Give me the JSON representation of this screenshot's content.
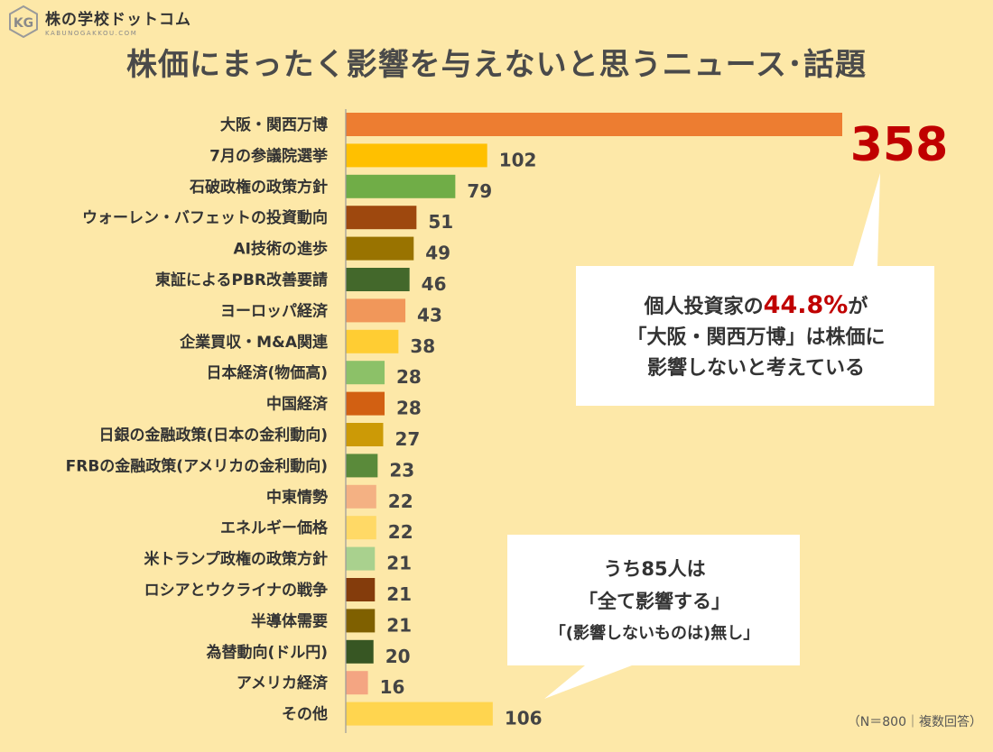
{
  "logo": {
    "name": "株の学校ドットコム",
    "sub": "KABUNOGAKKOU.COM",
    "mark": "KG"
  },
  "title": "株価にまったく影響を与えないと思うニュース･話題",
  "chart_data": {
    "type": "bar",
    "orientation": "horizontal",
    "categories": [
      "大阪・関西万博",
      "7月の参議院選挙",
      "石破政権の政策方針",
      "ウォーレン・バフェットの投資動向",
      "AI技術の進歩",
      "東証によるPBR改善要請",
      "ヨーロッパ経済",
      "企業買収・M&A関連",
      "日本経済(物価高)",
      "中国経済",
      "日銀の金融政策(日本の金利動向)",
      "FRBの金融政策(アメリカの金利動向)",
      "中東情勢",
      "エネルギー価格",
      "米トランプ政権の政策方針",
      "ロシアとウクライナの戦争",
      "半導体需要",
      "為替動向(ドル円)",
      "アメリカ経済",
      "その他"
    ],
    "values": [
      358,
      102,
      79,
      51,
      49,
      46,
      43,
      38,
      28,
      28,
      27,
      23,
      22,
      22,
      21,
      21,
      21,
      20,
      16,
      106
    ],
    "value_labels": [
      "358",
      "102",
      "79",
      "51",
      "49",
      "46",
      "43",
      "38",
      "28",
      "28",
      "27",
      "23",
      "22",
      "22",
      "21",
      "21",
      "21",
      "20",
      "16",
      "106"
    ],
    "colors": [
      "#ed7d31",
      "#ffc000",
      "#70ad47",
      "#9e480e",
      "#997300",
      "#43682b",
      "#f1975a",
      "#ffcd33",
      "#8cc168",
      "#d26012",
      "#cc9a06",
      "#5a8a3a",
      "#f4b183",
      "#ffd966",
      "#a9d18e",
      "#843c0c",
      "#7f6000",
      "#375623",
      "#f4a582",
      "#ffd54f"
    ],
    "xlim": [
      0,
      358
    ]
  },
  "callouts": {
    "main": {
      "line1_pre": "個人投資家の",
      "line1_highlight": "44.8%",
      "line1_post": "が",
      "line2": "「大阪・関西万博」は株価に",
      "line3": "影響しないと考えている"
    },
    "other": {
      "line1": "うち85人は",
      "line2": "「全て影響する」",
      "line3": "「(影響しないものは)無し」"
    }
  },
  "note": "（N＝800｜複数回答）"
}
